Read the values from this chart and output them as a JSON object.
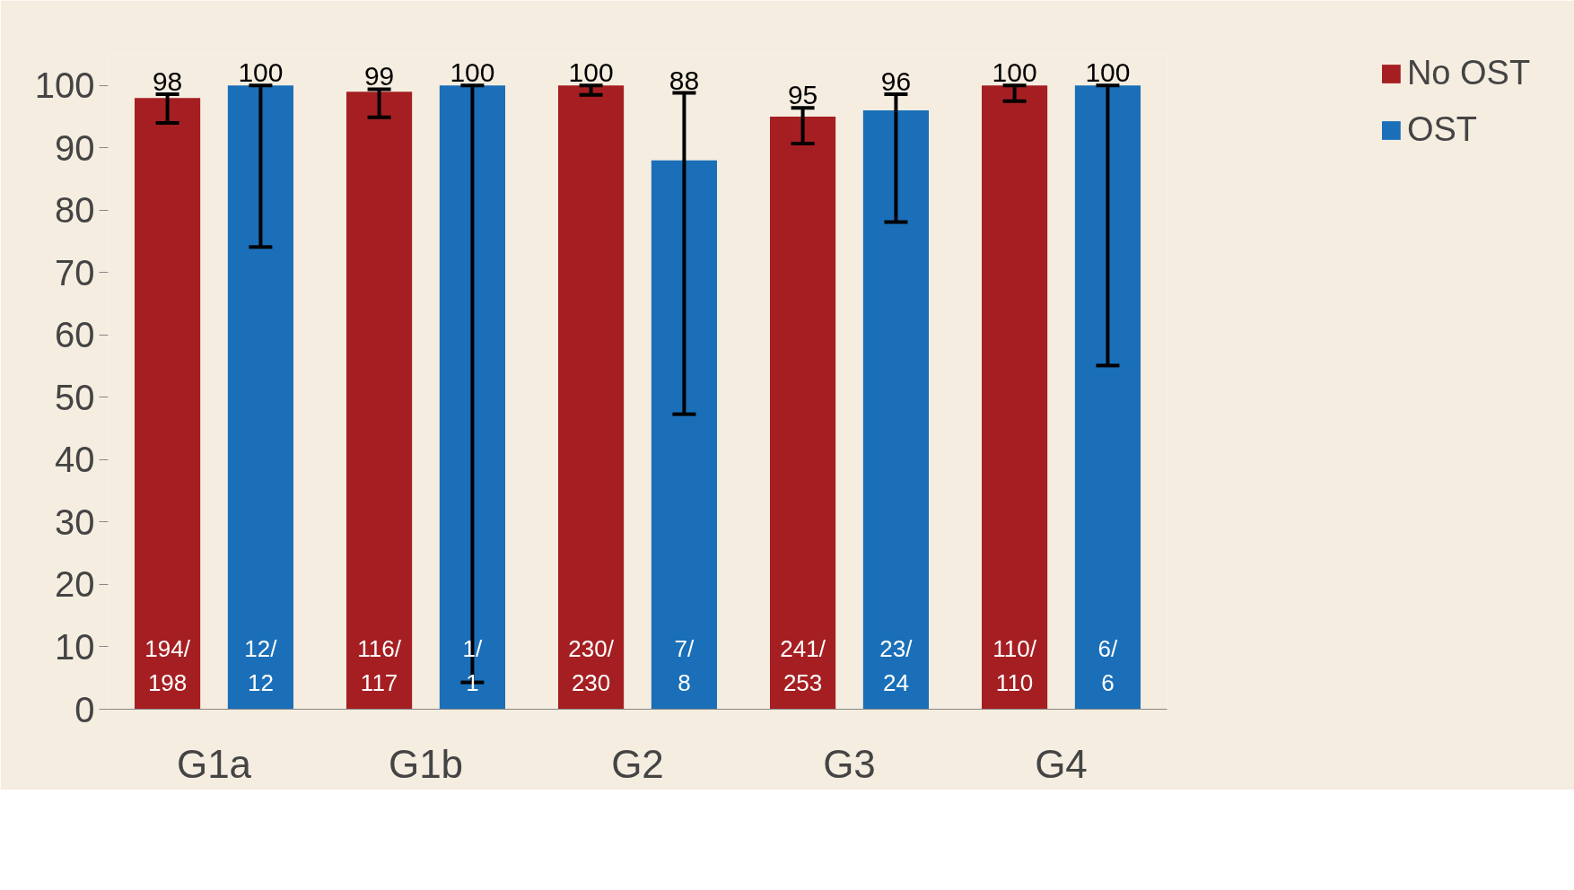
{
  "chart_data": {
    "type": "bar",
    "categories": [
      "G1a",
      "G1b",
      "G2",
      "G3",
      "G4"
    ],
    "series": [
      {
        "name": "No OST",
        "color": "#a51f22",
        "values": [
          98,
          99,
          100,
          95,
          100
        ],
        "errors": [
          [
            94.0,
            98.6
          ],
          [
            94.9,
            99.4
          ],
          [
            98.5,
            100
          ],
          [
            90.7,
            96.4
          ],
          [
            97.5,
            100
          ]
        ]
      },
      {
        "name": "OST",
        "color": "#1a6fb8",
        "values": [
          100,
          100,
          88,
          96,
          100
        ],
        "errors": [
          [
            74.1,
            100
          ],
          [
            4.3,
            100
          ],
          [
            47.3,
            98.8
          ],
          [
            78.1,
            98.6
          ],
          [
            55.1,
            100
          ]
        ]
      }
    ],
    "ylim": [
      0,
      105
    ],
    "yticks": [
      0,
      10,
      20,
      30,
      40,
      50,
      60,
      70,
      80,
      90,
      100
    ],
    "data_labels": true,
    "grid": false,
    "legend": "right",
    "annotations": [
      "194/\n198",
      "12/\n12",
      "116/\n117",
      "1/\n1",
      "230/\n230",
      "7/\n8",
      "241/\n253",
      "23/\n24",
      "110/\n110",
      "6/\n6"
    ]
  }
}
